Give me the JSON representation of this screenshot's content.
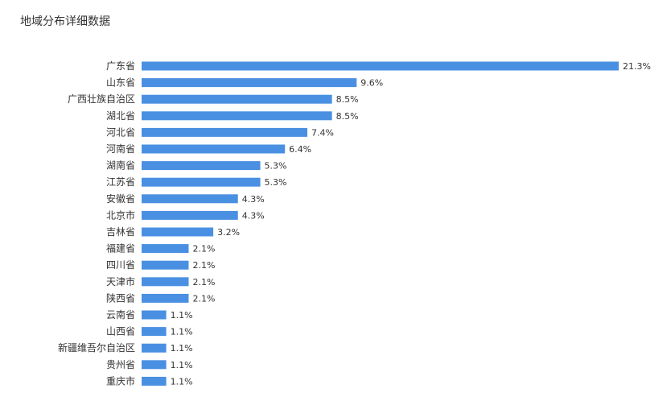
{
  "page": {
    "title": "地域分布详细数据"
  },
  "chart_data": {
    "type": "bar",
    "orientation": "horizontal",
    "title": "地域分布详细数据",
    "xlabel": "",
    "ylabel": "",
    "grid": false,
    "legend": "none",
    "value_suffix": "%",
    "bar_color": "#4a90e2",
    "categories": [
      "广东省",
      "山东省",
      "广西壮族自治区",
      "湖北省",
      "河北省",
      "河南省",
      "湖南省",
      "江苏省",
      "安徽省",
      "北京市",
      "吉林省",
      "福建省",
      "四川省",
      "天津市",
      "陕西省",
      "云南省",
      "山西省",
      "新疆维吾尔自治区",
      "贵州省",
      "重庆市"
    ],
    "values": [
      21.3,
      9.6,
      8.5,
      8.5,
      7.4,
      6.4,
      5.3,
      5.3,
      4.3,
      4.3,
      3.2,
      2.1,
      2.1,
      2.1,
      2.1,
      1.1,
      1.1,
      1.1,
      1.1,
      1.1
    ],
    "xlim": [
      0,
      21.3
    ]
  }
}
